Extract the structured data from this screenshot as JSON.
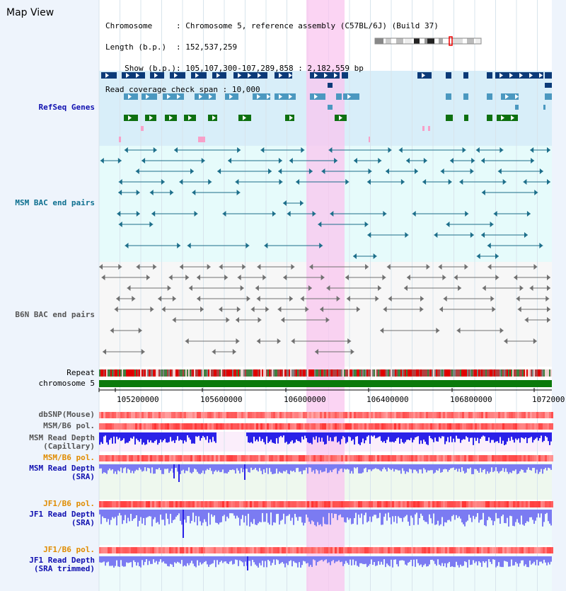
{
  "title": "Map View",
  "header": {
    "chromosome_key": "Chromosome",
    "chromosome_val": "Chromosome 5, reference assembly (C57BL/6J) (Build 37)",
    "length_key": "Length (b.p.)",
    "length_val": "152,537,259",
    "show_key": "Show (b.p.)",
    "show_val": "105,107,300-107,289,858 : 2,182,559 bp",
    "coverage_key": "Read coverage check span",
    "coverage_val": "10,000"
  },
  "tracks": {
    "refseq": "RefSeq Genes",
    "msm_bac": "MSM BAC end pairs",
    "b6n_bac": "B6N BAC end pairs",
    "repeat": "Repeat",
    "chromosome": "chromosome 5",
    "dbsnp": "dbSNP(Mouse)",
    "msm_b6_pol_1": "MSM/B6 pol.",
    "msm_depth_cap": "MSM Read Depth\n(Capillary)",
    "msm_b6_pol_2": "MSM/B6 pol.",
    "msm_depth_sra": "MSM Read Depth\n(SRA)",
    "jf1_b6_pol_1": "JF1/B6 pol.",
    "jf1_depth_sra": "JF1 Read Depth\n(SRA)",
    "jf1_b6_pol_2": "JF1/B6 pol.",
    "jf1_depth_trim": "JF1 Read Depth\n(SRA trimmed)"
  },
  "axis": {
    "ticks": [
      "105200000",
      "105600000",
      "106000000",
      "106400000",
      "106800000",
      "1072000"
    ]
  },
  "colors": {
    "refseq_dark": "#0b3a78",
    "refseq_mid": "#4b98c0",
    "refseq_green": "#0e7010",
    "msm_teal": "#1c6e8a",
    "b6n_grey": "#707070",
    "highlight": "#f9c5ef",
    "chrom_green": "#0b7a0b",
    "depth_blue": "#2b22e8",
    "depth_sra": "#7b7bf2",
    "label_blue": "#1010b0",
    "label_teal": "#0d6f8f",
    "label_orange": "#e08c00",
    "label_grey": "#555555"
  }
}
